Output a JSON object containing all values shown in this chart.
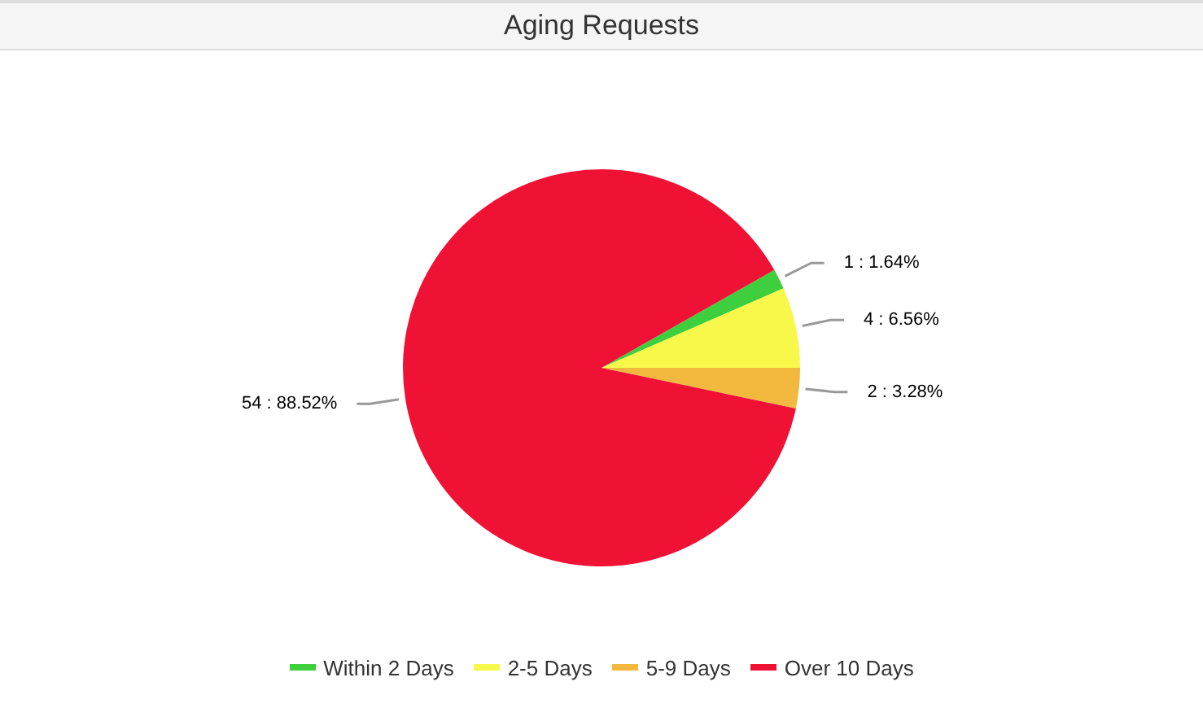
{
  "chart_data": {
    "type": "pie",
    "title": "Aging Requests",
    "categories": [
      "Within 2 Days",
      "2-5 Days",
      "5-9 Days",
      "Over 10 Days"
    ],
    "values": [
      1,
      4,
      2,
      54
    ],
    "colors": [
      "#3dcf3d",
      "#f8f84a",
      "#f2b93e",
      "#ef1235"
    ],
    "value_labels": [
      "1 : 1.64%",
      "4 : 6.56%",
      "2 : 3.28%",
      "54 : 88.52%"
    ],
    "legend": "bottom"
  }
}
